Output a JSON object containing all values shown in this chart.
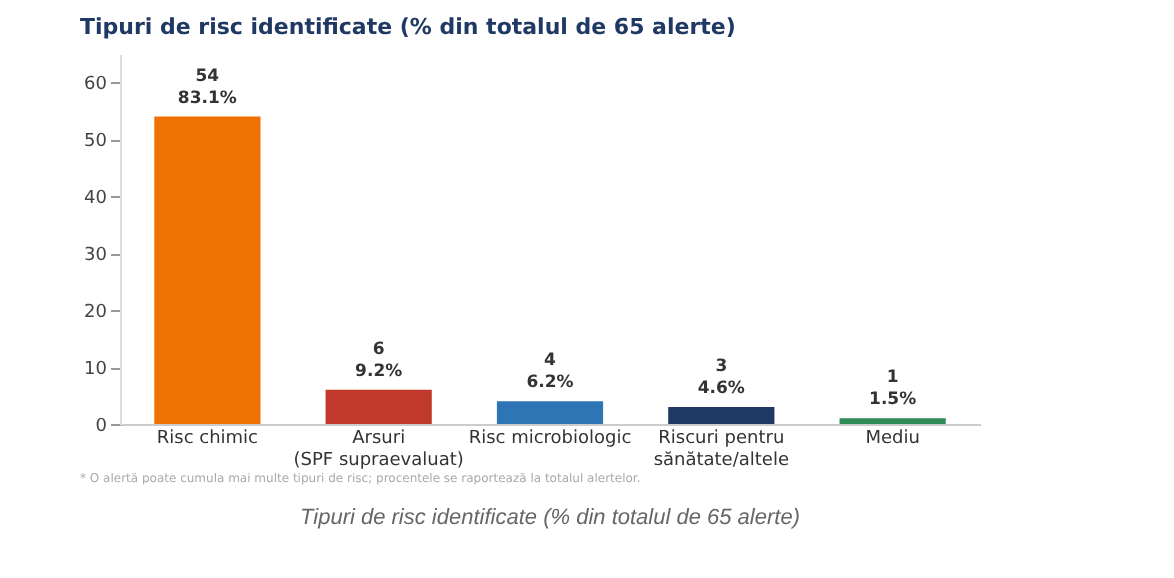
{
  "chart_data": {
    "type": "bar",
    "title": "Tipuri de risc identificate (% din totalul de 65 alerte)",
    "categories": [
      "Risc chimic",
      "Arsuri\n(SPF supraevaluat)",
      "Risc microbiologic",
      "Riscuri pentru\nsănătate/altele",
      "Mediu"
    ],
    "values": [
      54,
      6,
      4,
      3,
      1
    ],
    "colors": [
      "#ee7203",
      "#c0392b",
      "#2e75b6",
      "#1f3864",
      "#2e8b57"
    ],
    "value_labels": [
      "54\n83.1%",
      "6\n9.2%",
      "4\n6.2%",
      "3\n4.6%",
      "1\n1.5%"
    ],
    "ylim": [
      0,
      65
    ],
    "yticks": [
      0,
      10,
      20,
      30,
      40,
      50,
      60
    ],
    "grid": false,
    "annotations": [
      "* O alertă poate cumula mai multe tipuri de risc; procentele se raportează la totalul alertelor.",
      "Tipuri de risc identificate (% din totalul de 65 alerte)"
    ]
  }
}
